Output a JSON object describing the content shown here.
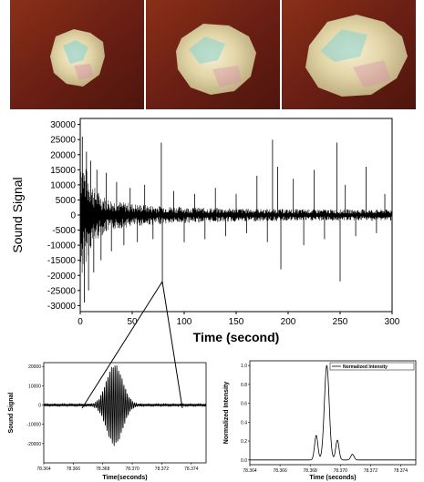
{
  "photos": [
    {
      "name": "crumpled-wrapper-photo-1"
    },
    {
      "name": "crumpled-wrapper-photo-2"
    },
    {
      "name": "crumpled-wrapper-photo-3"
    }
  ],
  "colors": {
    "wood_background": "#6b1f14",
    "wrapper_base": "#e7dcb6",
    "signal_line": "#000000"
  },
  "chart_data": [
    {
      "type": "line",
      "xlabel": "Time (second)",
      "ylabel": "Sound Signal",
      "xlim": [
        0,
        300
      ],
      "ylim": [
        -32000,
        32000
      ],
      "xticks": [
        "0",
        "50",
        "100",
        "150",
        "200",
        "250",
        "300"
      ],
      "yticks": [
        "30000",
        "25000",
        "20000",
        "15000",
        "10000",
        "5000",
        "0",
        "-5000",
        "-10000",
        "-15000",
        "-20000",
        "-25000",
        "-30000"
      ],
      "series": [
        {
          "description_of_envelope": "dense noise band",
          "spikes": [
            {
              "x": 2,
              "y": 26000
            },
            {
              "x": 4,
              "y": -29000
            },
            {
              "x": 6,
              "y": 21000
            },
            {
              "x": 8,
              "y": -25000
            },
            {
              "x": 10,
              "y": 18000
            },
            {
              "x": 13,
              "y": -19000
            },
            {
              "x": 16,
              "y": 15000
            },
            {
              "x": 20,
              "y": -15000
            },
            {
              "x": 25,
              "y": 14000
            },
            {
              "x": 30,
              "y": -12000
            },
            {
              "x": 35,
              "y": 11000
            },
            {
              "x": 42,
              "y": -10000
            },
            {
              "x": 48,
              "y": 9000
            },
            {
              "x": 55,
              "y": -9000
            },
            {
              "x": 62,
              "y": 10000
            },
            {
              "x": 70,
              "y": -8000
            },
            {
              "x": 78,
              "y": 24000
            },
            {
              "x": 79,
              "y": -23000
            },
            {
              "x": 90,
              "y": 8000
            },
            {
              "x": 100,
              "y": -9000
            },
            {
              "x": 110,
              "y": 7000
            },
            {
              "x": 120,
              "y": -8000
            },
            {
              "x": 130,
              "y": 9000
            },
            {
              "x": 140,
              "y": -7000
            },
            {
              "x": 150,
              "y": 7000
            },
            {
              "x": 160,
              "y": -6000
            },
            {
              "x": 170,
              "y": 13000
            },
            {
              "x": 180,
              "y": -9000
            },
            {
              "x": 185,
              "y": 25000
            },
            {
              "x": 190,
              "y": 16000
            },
            {
              "x": 193,
              "y": -18000
            },
            {
              "x": 205,
              "y": 12000
            },
            {
              "x": 215,
              "y": -10000
            },
            {
              "x": 225,
              "y": 15000
            },
            {
              "x": 235,
              "y": -8000
            },
            {
              "x": 247,
              "y": 24000
            },
            {
              "x": 250,
              "y": -22000
            },
            {
              "x": 255,
              "y": 10000
            },
            {
              "x": 265,
              "y": -7000
            },
            {
              "x": 275,
              "y": 16000
            },
            {
              "x": 285,
              "y": -6000
            },
            {
              "x": 293,
              "y": 7000
            }
          ]
        }
      ]
    },
    {
      "type": "line",
      "xlabel": "Time(seconds)",
      "ylabel": "Sound Signal",
      "xlim": [
        78.364,
        78.375
      ],
      "ylim": [
        -30000,
        22000
      ],
      "xticks": [
        "78.364",
        "78.366",
        "78.368",
        "78.370",
        "78.372",
        "78.374"
      ],
      "yticks": [
        "20000",
        "10000",
        "0",
        "-10000",
        "-20000"
      ],
      "series": [
        {
          "burst_center": 78.3688,
          "burst_peak": 18000,
          "burst_trough": -25000
        }
      ]
    },
    {
      "type": "line",
      "xlabel": "Time (seconds)",
      "ylabel": "Normalized Intensity",
      "xlim": [
        78.364,
        78.375
      ],
      "ylim": [
        -0.05,
        1.05
      ],
      "xticks": [
        "78.364",
        "78.366",
        "78.368",
        "78.370",
        "78.372",
        "78.374"
      ],
      "yticks": [
        "1.0",
        "0.8",
        "0.6",
        "0.4",
        "0.2",
        "0.0"
      ],
      "legend": "top-right",
      "series": [
        {
          "name": "Normalized Intensity",
          "peaks": [
            {
              "x": 78.3684,
              "y": 0.26
            },
            {
              "x": 78.3691,
              "y": 1.0
            },
            {
              "x": 78.3698,
              "y": 0.21
            },
            {
              "x": 78.3708,
              "y": 0.06
            }
          ]
        }
      ]
    }
  ]
}
